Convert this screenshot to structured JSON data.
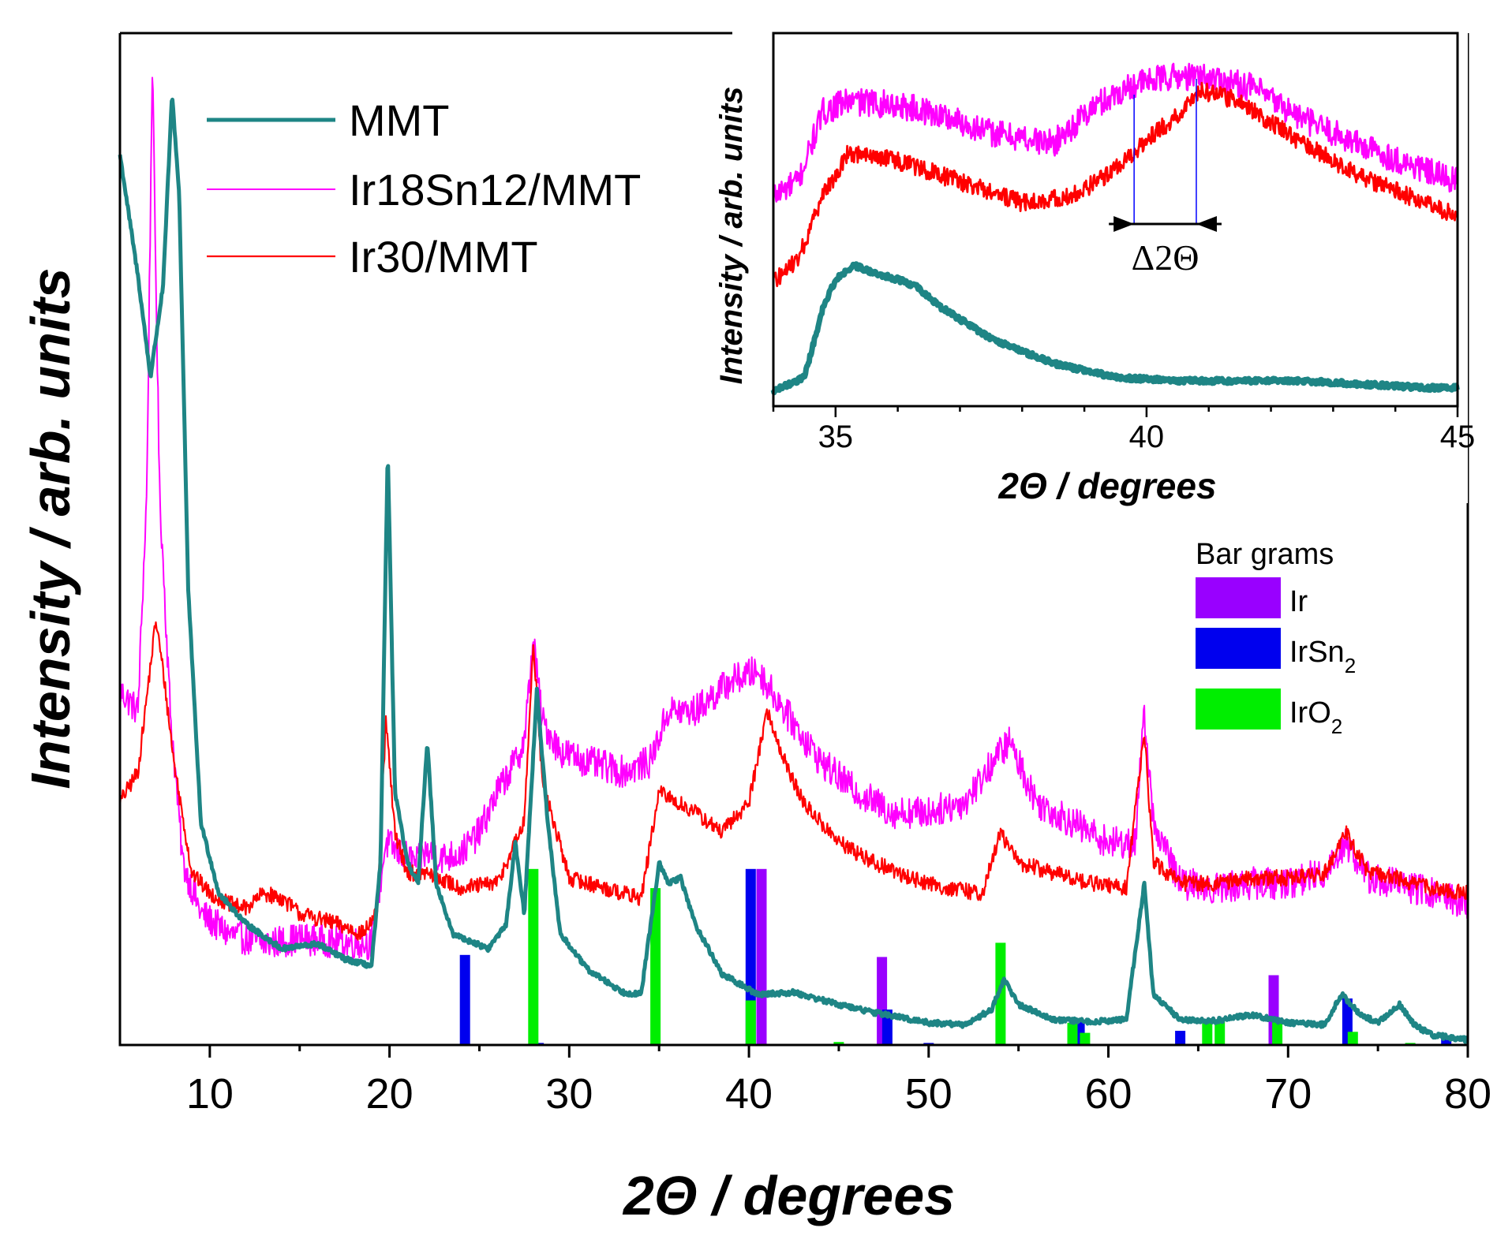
{
  "chart_data": [
    {
      "type": "line",
      "title": "",
      "xlabel": "2Θ / degrees",
      "ylabel": "Intensity / arb. units",
      "xlim": [
        5,
        80
      ],
      "ylim": [
        0,
        100
      ],
      "xticks": [
        10,
        20,
        30,
        40,
        50,
        60,
        70,
        80
      ],
      "legend": {
        "placement": "top-left"
      },
      "series": [
        {
          "name": "MMT",
          "color": "#1e8585",
          "points": [
            [
              5,
              88
            ],
            [
              6,
              76
            ],
            [
              6.7,
              66
            ],
            [
              7.4,
              75
            ],
            [
              7.9,
              94
            ],
            [
              8.3,
              84
            ],
            [
              8.8,
              45
            ],
            [
              9.5,
              22
            ],
            [
              10.5,
              15
            ],
            [
              12,
              12
            ],
            [
              14,
              9.5
            ],
            [
              16,
              10
            ],
            [
              17.5,
              8.5
            ],
            [
              19,
              7.8
            ],
            [
              19.5,
              18
            ],
            [
              19.9,
              59
            ],
            [
              20.3,
              25
            ],
            [
              21,
              18
            ],
            [
              21.6,
              16
            ],
            [
              22.1,
              30
            ],
            [
              22.6,
              16
            ],
            [
              23.5,
              11
            ],
            [
              25.5,
              9.5
            ],
            [
              26.5,
              12
            ],
            [
              27,
              20
            ],
            [
              27.5,
              13
            ],
            [
              28.2,
              35
            ],
            [
              28.8,
              22
            ],
            [
              29.5,
              11
            ],
            [
              31,
              7.5
            ],
            [
              33,
              5.2
            ],
            [
              34,
              5
            ],
            [
              35,
              18
            ],
            [
              35.5,
              16
            ],
            [
              36.2,
              16.5
            ],
            [
              37,
              12
            ],
            [
              38.5,
              7
            ],
            [
              40.5,
              5
            ],
            [
              42.5,
              5.2
            ],
            [
              45,
              4
            ],
            [
              47,
              3.2
            ],
            [
              50,
              2.2
            ],
            [
              52,
              2
            ],
            [
              53.5,
              3.5
            ],
            [
              54.2,
              6.5
            ],
            [
              55,
              4
            ],
            [
              57,
              2.5
            ],
            [
              59,
              2.3
            ],
            [
              61,
              2.5
            ],
            [
              62,
              16
            ],
            [
              62.5,
              5
            ],
            [
              64,
              2.5
            ],
            [
              66,
              2.4
            ],
            [
              68,
              3
            ],
            [
              70,
              2.2
            ],
            [
              72,
              2
            ],
            [
              73,
              5
            ],
            [
              74,
              3
            ],
            [
              75,
              2.2
            ],
            [
              76.2,
              4
            ],
            [
              77,
              2
            ],
            [
              78,
              1
            ],
            [
              80,
              0.5
            ]
          ]
        },
        {
          "name": "Ir18Sn12/MMT",
          "color": "#ff00ff",
          "points": [
            [
              5,
              35
            ],
            [
              6,
              33
            ],
            [
              6.5,
              55
            ],
            [
              6.8,
              97
            ],
            [
              7.2,
              55
            ],
            [
              7.8,
              33
            ],
            [
              8.5,
              18
            ],
            [
              9.5,
              13
            ],
            [
              11,
              11
            ],
            [
              13,
              10
            ],
            [
              15,
              10.5
            ],
            [
              17,
              10.2
            ],
            [
              19,
              10
            ],
            [
              19.8,
              20
            ],
            [
              20.5,
              19
            ],
            [
              21.5,
              18
            ],
            [
              22,
              19
            ],
            [
              23,
              18.5
            ],
            [
              24,
              19
            ],
            [
              25,
              21
            ],
            [
              26,
              25
            ],
            [
              27,
              28
            ],
            [
              27.5,
              30
            ],
            [
              28,
              40
            ],
            [
              28.5,
              32
            ],
            [
              29.5,
              29
            ],
            [
              31,
              28
            ],
            [
              33,
              27
            ],
            [
              34.5,
              28
            ],
            [
              35.5,
              33
            ],
            [
              37,
              33
            ],
            [
              39,
              36
            ],
            [
              40.5,
              37
            ],
            [
              42,
              33
            ],
            [
              44,
              28
            ],
            [
              46,
              25
            ],
            [
              48,
              23
            ],
            [
              50,
              23
            ],
            [
              52,
              24
            ],
            [
              54,
              29
            ],
            [
              54.5,
              30
            ],
            [
              56,
              24
            ],
            [
              58,
              22
            ],
            [
              60,
              20
            ],
            [
              61.5,
              20
            ],
            [
              62,
              33
            ],
            [
              62.5,
              22
            ],
            [
              64,
              16
            ],
            [
              66,
              15.5
            ],
            [
              68,
              16
            ],
            [
              70,
              16
            ],
            [
              72,
              17
            ],
            [
              73.2,
              20
            ],
            [
              74.5,
              16.5
            ],
            [
              76,
              16
            ],
            [
              78,
              15
            ],
            [
              80,
              14
            ]
          ]
        },
        {
          "name": "Ir30/MMT",
          "color": "#ff0000",
          "points": [
            [
              5,
              24
            ],
            [
              6,
              27
            ],
            [
              7,
              42
            ],
            [
              7.4,
              37
            ],
            [
              8,
              28
            ],
            [
              9,
              17
            ],
            [
              10,
              15
            ],
            [
              11,
              14
            ],
            [
              12,
              13.5
            ],
            [
              13,
              15
            ],
            [
              14,
              14.5
            ],
            [
              15,
              13
            ],
            [
              17,
              12
            ],
            [
              18.5,
              11
            ],
            [
              19.3,
              13
            ],
            [
              19.8,
              32
            ],
            [
              20.3,
              21
            ],
            [
              21,
              17
            ],
            [
              22,
              17
            ],
            [
              24,
              15.5
            ],
            [
              26,
              16
            ],
            [
              27.5,
              22
            ],
            [
              28,
              40
            ],
            [
              28.5,
              26
            ],
            [
              30,
              16.5
            ],
            [
              32,
              15.5
            ],
            [
              34,
              14.5
            ],
            [
              35,
              25
            ],
            [
              36,
              24
            ],
            [
              37,
              23
            ],
            [
              38.5,
              21
            ],
            [
              40,
              24
            ],
            [
              41,
              33
            ],
            [
              42,
              28
            ],
            [
              43,
              24
            ],
            [
              45,
              20
            ],
            [
              47,
              18
            ],
            [
              49,
              16.5
            ],
            [
              51,
              15.5
            ],
            [
              53,
              15
            ],
            [
              54,
              21
            ],
            [
              55,
              18
            ],
            [
              57,
              17
            ],
            [
              59,
              16
            ],
            [
              61,
              15.5
            ],
            [
              62,
              31
            ],
            [
              62.5,
              18
            ],
            [
              64,
              16
            ],
            [
              66,
              16
            ],
            [
              68,
              16.5
            ],
            [
              70,
              16.5
            ],
            [
              72,
              17
            ],
            [
              73.2,
              21
            ],
            [
              74.5,
              17
            ],
            [
              76,
              16.5
            ],
            [
              78,
              15.5
            ],
            [
              80,
              15
            ]
          ]
        }
      ],
      "bars": {
        "legend_title": "Bar grams",
        "legend_placement": "right",
        "series": [
          {
            "name": "Ir",
            "legend_label": "Ir",
            "color": "#9900ff",
            "peaks": [
              [
                40.7,
                17.4
              ],
              [
                47.4,
                8.7
              ],
              [
                69.2,
                6.9
              ]
            ]
          },
          {
            "name": "IrSn2",
            "legend_label": "IrSn",
            "legend_subscript": "2",
            "color": "#0000ee",
            "peaks": [
              [
                24.2,
                8.9
              ],
              [
                28.3,
                0.2
              ],
              [
                40.1,
                17.4
              ],
              [
                47.7,
                3.5
              ],
              [
                50,
                0.2
              ],
              [
                58.4,
                2.5
              ],
              [
                64,
                1.4
              ],
              [
                73.3,
                4.6
              ],
              [
                78.8,
                0.8
              ]
            ]
          },
          {
            "name": "IrO2",
            "legend_label": "IrO",
            "legend_subscript": "2",
            "color": "#00ee00",
            "peaks": [
              [
                28,
                17.4
              ],
              [
                34.8,
                15.5
              ],
              [
                40.1,
                4.4
              ],
              [
                45,
                0.3
              ],
              [
                54,
                10.1
              ],
              [
                58,
                2.2
              ],
              [
                58.7,
                1.2
              ],
              [
                65.5,
                2.2
              ],
              [
                66.2,
                2.4
              ],
              [
                69.4,
                2.5
              ],
              [
                73.6,
                1.3
              ],
              [
                76.8,
                0.2
              ]
            ]
          }
        ]
      }
    },
    {
      "type": "line",
      "title": "",
      "xlabel": "2Θ / degrees",
      "ylabel": "Intensity / arb. units",
      "xlim": [
        34,
        45
      ],
      "ylim": [
        0,
        100
      ],
      "xticks": [
        35,
        40,
        45
      ],
      "annotation": {
        "label": "Δ2Θ",
        "from_x": 39.8,
        "to_x": 40.8
      },
      "series": [
        {
          "name": "MMT",
          "color": "#1e8585",
          "points": [
            [
              34,
              2
            ],
            [
              34.5,
              6
            ],
            [
              34.8,
              26
            ],
            [
              35,
              34
            ],
            [
              35.3,
              38
            ],
            [
              35.6,
              36
            ],
            [
              36,
              34
            ],
            [
              36.3,
              32
            ],
            [
              36.7,
              26
            ],
            [
              37.5,
              17
            ],
            [
              38.5,
              10
            ],
            [
              39.5,
              6
            ],
            [
              40.5,
              5
            ],
            [
              41.5,
              5
            ],
            [
              42.5,
              5
            ],
            [
              43.5,
              4
            ],
            [
              44.5,
              3
            ],
            [
              45,
              3
            ]
          ]
        },
        {
          "name": "Ir18Sn12/MMT",
          "color": "#ff00ff",
          "points": [
            [
              34,
              58
            ],
            [
              34.4,
              62
            ],
            [
              34.8,
              82
            ],
            [
              35.2,
              85
            ],
            [
              36,
              84
            ],
            [
              36.7,
              81
            ],
            [
              37.5,
              76
            ],
            [
              38.5,
              73
            ],
            [
              39.2,
              84
            ],
            [
              39.8,
              90
            ],
            [
              40.4,
              92
            ],
            [
              41,
              92
            ],
            [
              41.7,
              89
            ],
            [
              42.5,
              80
            ],
            [
              43.5,
              72
            ],
            [
              44.5,
              65
            ],
            [
              45,
              62
            ]
          ]
        },
        {
          "name": "Ir30/MMT",
          "color": "#ff0000",
          "points": [
            [
              34,
              33
            ],
            [
              34.4,
              40
            ],
            [
              34.8,
              58
            ],
            [
              35.2,
              70
            ],
            [
              36,
              68
            ],
            [
              37,
              62
            ],
            [
              38,
              56
            ],
            [
              38.8,
              58
            ],
            [
              39.4,
              64
            ],
            [
              40,
              74
            ],
            [
              40.5,
              81
            ],
            [
              40.9,
              88
            ],
            [
              41.5,
              85
            ],
            [
              42.5,
              73
            ],
            [
              43.5,
              63
            ],
            [
              44.5,
              56
            ],
            [
              45,
              52
            ]
          ]
        }
      ]
    }
  ]
}
